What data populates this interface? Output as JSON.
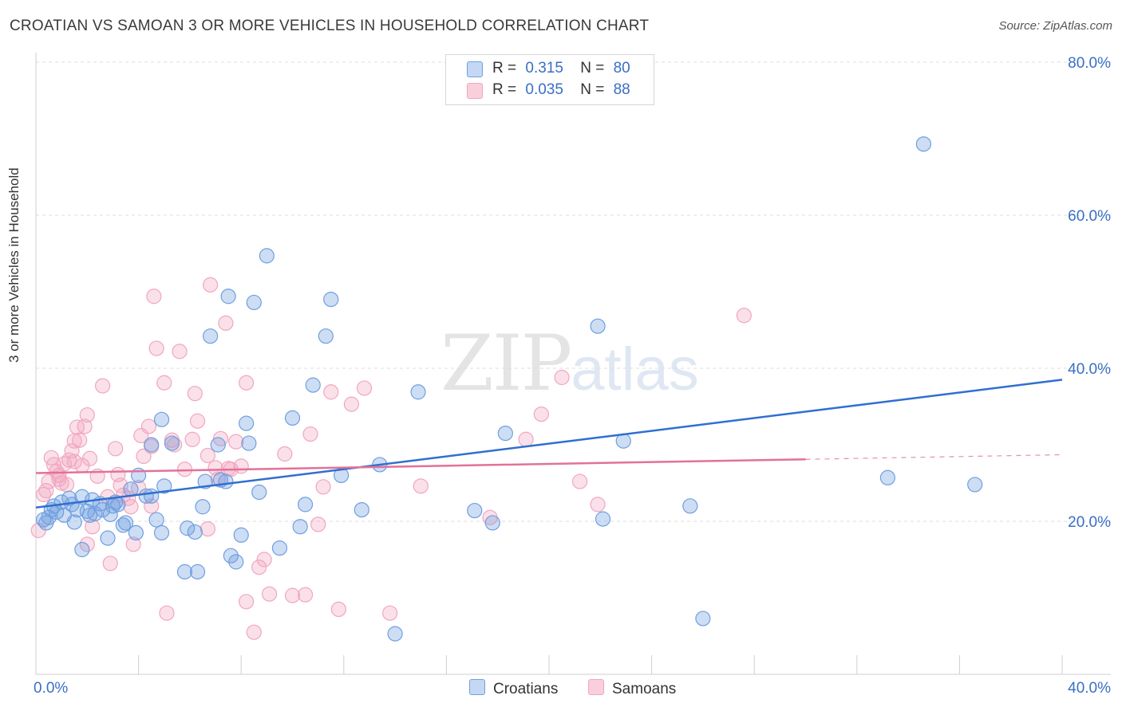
{
  "title": "CROATIAN VS SAMOAN 3 OR MORE VEHICLES IN HOUSEHOLD CORRELATION CHART",
  "source": "Source: ZipAtlas.com",
  "watermark": {
    "zip": "ZIP",
    "atlas": "atlas"
  },
  "legend": {
    "r_label": "R =",
    "n_label": "N =",
    "croatians": {
      "r": "0.315",
      "n": "80"
    },
    "samoans": {
      "r": "0.035",
      "n": "88"
    }
  },
  "chart_data": {
    "type": "scatter",
    "ylabel": "3 or more Vehicles in Household",
    "xlim": [
      0,
      40
    ],
    "ylim": [
      0,
      80
    ],
    "x_tick_labels": [
      "0.0%",
      "40.0%"
    ],
    "y_ticks": [
      20,
      40,
      60,
      80
    ],
    "y_tick_labels": [
      "20.0%",
      "40.0%",
      "60.0%",
      "80.0%"
    ],
    "grid": true,
    "colors": {
      "croatians": "#6f9fe0",
      "samoans": "#f2a6bf",
      "croatians_line": "#2f6fcf",
      "samoans_line": "#e2719a"
    },
    "series": [
      {
        "name": "Croatians",
        "trend": {
          "x": [
            0,
            40
          ],
          "y": [
            21.8,
            38.5
          ]
        },
        "points": [
          [
            0.3,
            20.2
          ],
          [
            0.4,
            19.8
          ],
          [
            0.5,
            20.5
          ],
          [
            0.6,
            21.5
          ],
          [
            0.7,
            22.0
          ],
          [
            0.8,
            21.2
          ],
          [
            1.0,
            22.5
          ],
          [
            1.1,
            20.8
          ],
          [
            1.3,
            23.0
          ],
          [
            1.4,
            22.2
          ],
          [
            1.5,
            19.9
          ],
          [
            1.6,
            21.5
          ],
          [
            1.8,
            23.2
          ],
          [
            1.8,
            16.3
          ],
          [
            2.0,
            21.3
          ],
          [
            2.1,
            20.8
          ],
          [
            2.2,
            22.8
          ],
          [
            2.3,
            21.0
          ],
          [
            2.5,
            22.3
          ],
          [
            2.6,
            21.5
          ],
          [
            2.8,
            17.8
          ],
          [
            2.9,
            20.9
          ],
          [
            3.0,
            22.0
          ],
          [
            3.1,
            22.5
          ],
          [
            3.2,
            22.2
          ],
          [
            3.4,
            19.5
          ],
          [
            3.5,
            19.8
          ],
          [
            3.7,
            24.2
          ],
          [
            3.9,
            18.5
          ],
          [
            4.0,
            26.0
          ],
          [
            4.3,
            23.3
          ],
          [
            4.5,
            30.0
          ],
          [
            4.5,
            23.3
          ],
          [
            4.7,
            20.2
          ],
          [
            4.9,
            18.5
          ],
          [
            4.9,
            33.3
          ],
          [
            5.0,
            24.6
          ],
          [
            5.3,
            30.2
          ],
          [
            5.8,
            13.4
          ],
          [
            5.9,
            19.1
          ],
          [
            6.2,
            18.6
          ],
          [
            6.3,
            13.4
          ],
          [
            6.5,
            21.9
          ],
          [
            6.6,
            25.2
          ],
          [
            6.8,
            44.2
          ],
          [
            7.1,
            30.0
          ],
          [
            7.2,
            25.4
          ],
          [
            7.4,
            25.2
          ],
          [
            7.5,
            49.4
          ],
          [
            7.6,
            15.5
          ],
          [
            7.8,
            14.7
          ],
          [
            8.0,
            18.2
          ],
          [
            8.2,
            32.8
          ],
          [
            8.3,
            30.2
          ],
          [
            8.5,
            48.6
          ],
          [
            8.7,
            23.8
          ],
          [
            9.0,
            54.7
          ],
          [
            9.5,
            16.5
          ],
          [
            10.0,
            33.5
          ],
          [
            10.3,
            19.3
          ],
          [
            10.5,
            22.2
          ],
          [
            10.8,
            37.8
          ],
          [
            11.3,
            44.2
          ],
          [
            11.5,
            49.0
          ],
          [
            11.9,
            26.0
          ],
          [
            13.4,
            27.4
          ],
          [
            14.0,
            5.3
          ],
          [
            14.9,
            36.9
          ],
          [
            17.1,
            21.4
          ],
          [
            17.8,
            19.8
          ],
          [
            18.3,
            31.5
          ],
          [
            21.9,
            45.5
          ],
          [
            22.1,
            20.3
          ],
          [
            22.9,
            30.5
          ],
          [
            25.5,
            22.0
          ],
          [
            26.0,
            7.3
          ],
          [
            33.2,
            25.7
          ],
          [
            34.6,
            69.3
          ],
          [
            36.6,
            24.8
          ],
          [
            12.7,
            21.5
          ]
        ]
      },
      {
        "name": "Samoans",
        "trend": {
          "x": [
            0,
            30
          ],
          "y": [
            26.3,
            28.1
          ]
        },
        "trend_dashed": {
          "x": [
            30,
            40
          ],
          "y": [
            28.1,
            28.7
          ]
        },
        "points": [
          [
            0.1,
            18.8
          ],
          [
            0.3,
            23.5
          ],
          [
            0.4,
            24.0
          ],
          [
            0.5,
            25.2
          ],
          [
            0.6,
            28.3
          ],
          [
            0.7,
            27.4
          ],
          [
            0.8,
            26.5
          ],
          [
            0.9,
            26.0
          ],
          [
            1.0,
            25.0
          ],
          [
            1.1,
            27.5
          ],
          [
            1.2,
            24.8
          ],
          [
            1.3,
            28.0
          ],
          [
            1.4,
            29.2
          ],
          [
            1.5,
            30.5
          ],
          [
            1.6,
            32.3
          ],
          [
            1.7,
            30.6
          ],
          [
            1.8,
            27.3
          ],
          [
            1.9,
            32.4
          ],
          [
            2.0,
            33.9
          ],
          [
            2.0,
            17.0
          ],
          [
            2.1,
            28.2
          ],
          [
            2.2,
            19.3
          ],
          [
            2.4,
            25.9
          ],
          [
            2.6,
            37.7
          ],
          [
            2.8,
            23.2
          ],
          [
            2.9,
            14.5
          ],
          [
            3.1,
            29.5
          ],
          [
            3.2,
            26.1
          ],
          [
            3.3,
            24.7
          ],
          [
            3.4,
            23.4
          ],
          [
            3.6,
            23.0
          ],
          [
            3.8,
            17.0
          ],
          [
            4.0,
            24.4
          ],
          [
            4.1,
            31.2
          ],
          [
            4.2,
            28.5
          ],
          [
            4.4,
            32.4
          ],
          [
            4.5,
            22.0
          ],
          [
            4.5,
            29.8
          ],
          [
            4.6,
            49.4
          ],
          [
            4.7,
            42.6
          ],
          [
            5.0,
            38.1
          ],
          [
            5.1,
            8.0
          ],
          [
            5.3,
            30.6
          ],
          [
            5.4,
            30.0
          ],
          [
            5.6,
            42.2
          ],
          [
            5.8,
            26.8
          ],
          [
            6.1,
            30.7
          ],
          [
            6.2,
            36.7
          ],
          [
            6.3,
            33.1
          ],
          [
            6.7,
            28.6
          ],
          [
            6.7,
            19.0
          ],
          [
            6.8,
            50.9
          ],
          [
            7.1,
            25.5
          ],
          [
            7.2,
            30.8
          ],
          [
            7.4,
            45.9
          ],
          [
            7.6,
            26.8
          ],
          [
            7.8,
            30.4
          ],
          [
            8.0,
            27.2
          ],
          [
            8.2,
            38.1
          ],
          [
            8.2,
            9.5
          ],
          [
            8.5,
            5.5
          ],
          [
            8.7,
            14.0
          ],
          [
            8.9,
            15.0
          ],
          [
            9.1,
            10.5
          ],
          [
            9.7,
            28.8
          ],
          [
            10.0,
            10.3
          ],
          [
            10.5,
            10.4
          ],
          [
            10.7,
            31.4
          ],
          [
            11.0,
            19.6
          ],
          [
            11.2,
            24.5
          ],
          [
            11.5,
            36.9
          ],
          [
            11.8,
            8.5
          ],
          [
            12.3,
            35.3
          ],
          [
            12.8,
            37.4
          ],
          [
            13.8,
            8.0
          ],
          [
            15.0,
            24.6
          ],
          [
            17.7,
            20.5
          ],
          [
            19.1,
            30.7
          ],
          [
            19.7,
            34.0
          ],
          [
            20.5,
            38.8
          ],
          [
            21.2,
            25.2
          ],
          [
            21.9,
            22.2
          ],
          [
            27.6,
            46.9
          ],
          [
            7.5,
            26.9
          ],
          [
            7.0,
            27.0
          ],
          [
            3.7,
            21.9
          ],
          [
            1.5,
            27.8
          ],
          [
            0.9,
            25.5
          ]
        ]
      }
    ]
  },
  "bottom_legend": {
    "croatians": "Croatians",
    "samoans": "Samoans"
  }
}
